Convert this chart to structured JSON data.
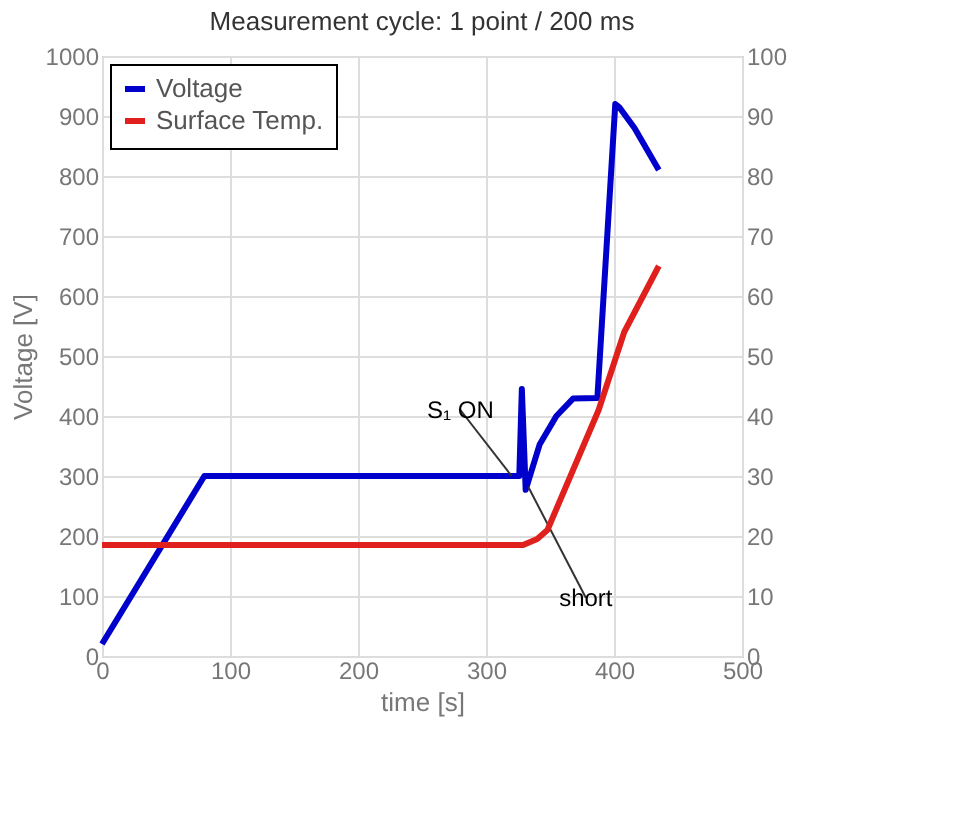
{
  "chart_data": {
    "type": "line",
    "title": "Measurement cycle: 1 point / 200 ms",
    "xlabel": "time [s]",
    "ylabel": "Voltage [V]",
    "xlim": [
      0,
      500
    ],
    "xticks": [
      0,
      100,
      200,
      300,
      400,
      500
    ],
    "ylim": [
      0,
      1000
    ],
    "yticks": [
      0,
      100,
      200,
      300,
      400,
      500,
      600,
      700,
      800,
      900,
      1000
    ],
    "y2lim": [
      0,
      100
    ],
    "y2ticks": [
      0,
      10,
      20,
      30,
      40,
      50,
      60,
      70,
      80,
      90,
      100
    ],
    "series": [
      {
        "name": "Voltage",
        "color": "#0000cc",
        "x": [
          0,
          80,
          320,
          326,
          328,
          331,
          342,
          355,
          368,
          387,
          401,
          404,
          416,
          435
        ],
        "values": [
          20,
          300,
          300,
          300,
          445,
          277,
          353,
          400,
          429,
          430,
          920,
          915,
          880,
          810
        ]
      },
      {
        "name": "Surface Temp.",
        "color": "#e0201c",
        "axis": "y2",
        "x": [
          0,
          100,
          200,
          329,
          340,
          348,
          368,
          388,
          408,
          435
        ],
        "values": [
          18.5,
          18.5,
          18.5,
          18.5,
          19.5,
          21,
          31,
          41,
          54,
          65
        ]
      }
    ],
    "annotations": [
      {
        "text": "S₁ ON",
        "x": 320,
        "y": 300
      },
      {
        "text": "short",
        "x": 333,
        "y": 282
      }
    ],
    "grid": true,
    "legend": "top left",
    "line_style": "solid",
    "marker": "none"
  }
}
